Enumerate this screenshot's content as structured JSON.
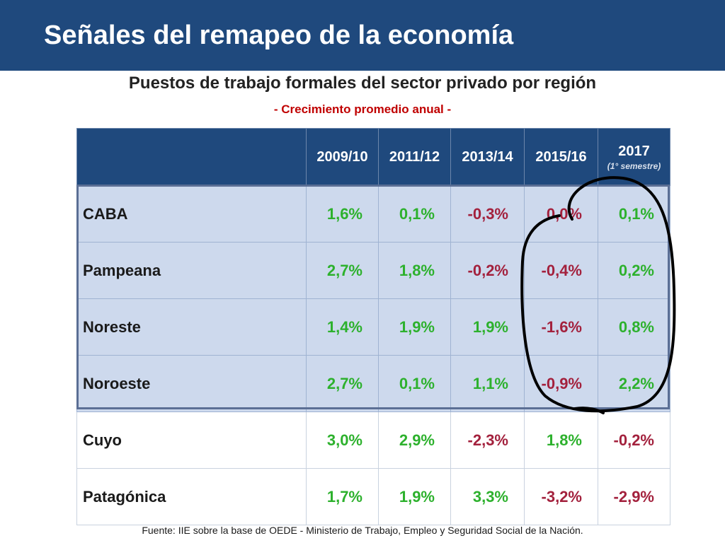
{
  "header": {
    "title": "Señales del remapeo de la economía"
  },
  "table_title": "Puestos de trabajo formales del sector privado por región",
  "table_subtitle": "- Crecimiento promedio anual -",
  "columns": [
    "2009/10",
    "2011/12",
    "2013/14",
    "2015/16",
    "2017"
  ],
  "last_column_note": "(1° semestre)",
  "rows": [
    {
      "region": "CABA",
      "values": [
        "1,6%",
        "0,1%",
        "-0,3%",
        "0,0%",
        "0,1%"
      ]
    },
    {
      "region": "Pampeana",
      "values": [
        "2,7%",
        "1,8%",
        "-0,2%",
        "-0,4%",
        "0,2%"
      ]
    },
    {
      "region": "Noreste",
      "values": [
        "1,4%",
        "1,9%",
        "1,9%",
        "-1,6%",
        "0,8%"
      ]
    },
    {
      "region": "Noroeste",
      "values": [
        "2,7%",
        "0,1%",
        "1,1%",
        "-0,9%",
        "2,2%"
      ]
    },
    {
      "region": "Cuyo",
      "values": [
        "3,0%",
        "2,9%",
        "-2,3%",
        "1,8%",
        "-0,2%"
      ]
    },
    {
      "region": "Patagónica",
      "values": [
        "1,7%",
        "1,9%",
        "3,3%",
        "-3,2%",
        "-2,9%"
      ]
    }
  ],
  "source": "Fuente: IIE sobre la base de OEDE - Ministerio de Trabajo, Empleo y Seguridad Social de la Nación.",
  "colors": {
    "banner": "#1f497d",
    "positive": "#2db12d",
    "negative": "#a3213d",
    "shaded_row": "#cdd9ed",
    "subtitle_red": "#c00000"
  }
}
